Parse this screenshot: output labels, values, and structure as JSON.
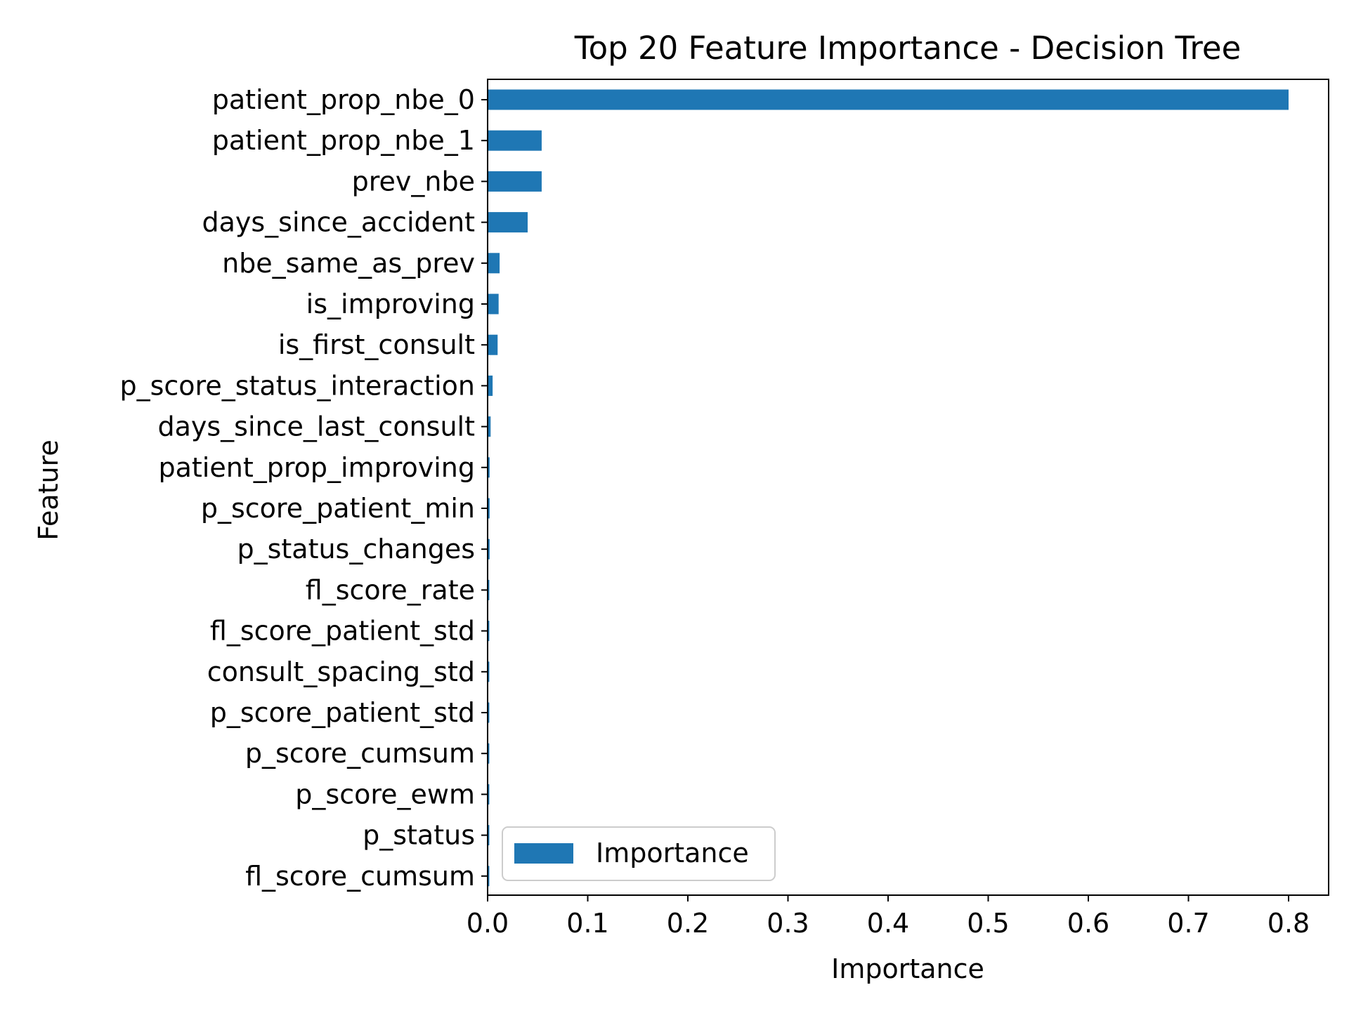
{
  "chart_data": {
    "type": "bar",
    "orientation": "horizontal",
    "title": "Top 20 Feature Importance - Decision Tree",
    "xlabel": "Importance",
    "ylabel": "Feature",
    "xlim": [
      0,
      0.84
    ],
    "xticks": [
      0.0,
      0.1,
      0.2,
      0.3,
      0.4,
      0.5,
      0.6,
      0.7,
      0.8
    ],
    "xtick_labels": [
      "0.0",
      "0.1",
      "0.2",
      "0.3",
      "0.4",
      "0.5",
      "0.6",
      "0.7",
      "0.8"
    ],
    "grid": false,
    "legend_position": "lower-left",
    "series": [
      {
        "name": "Importance",
        "color": "#1f77b4"
      }
    ],
    "categories": [
      "patient_prop_nbe_0",
      "patient_prop_nbe_1",
      "prev_nbe",
      "days_since_accident",
      "nbe_same_as_prev",
      "is_improving",
      "is_first_consult",
      "p_score_status_interaction",
      "days_since_last_consult",
      "patient_prop_improving",
      "p_score_patient_min",
      "p_status_changes",
      "fl_score_rate",
      "fl_score_patient_std",
      "consult_spacing_std",
      "p_score_patient_std",
      "p_score_cumsum",
      "p_score_ewm",
      "p_status",
      "fl_score_cumsum"
    ],
    "values": [
      0.8,
      0.054,
      0.054,
      0.04,
      0.012,
      0.011,
      0.01,
      0.005,
      0.003,
      0.002,
      0.002,
      0.002,
      0.0003,
      0.0003,
      0.0002,
      0.0002,
      0.0002,
      0.0001,
      0.0001,
      0.0001
    ]
  }
}
